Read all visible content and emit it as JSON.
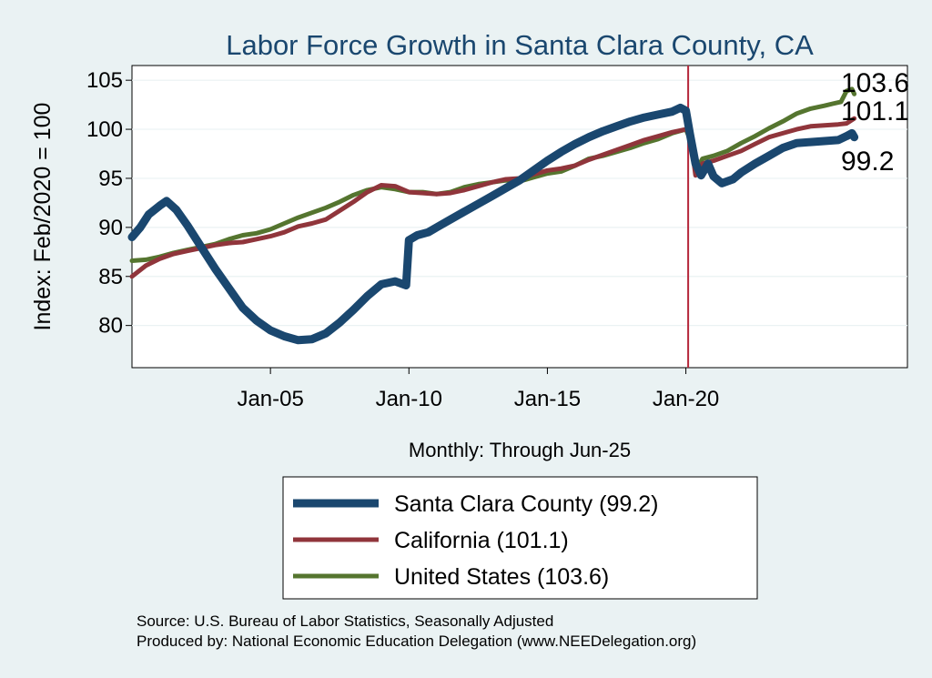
{
  "chart_data": {
    "type": "line",
    "title": "Labor Force Growth in Santa Clara  County, CA",
    "ylabel": "Index: Feb/2020 = 100",
    "xlabel": "Monthly: Through Jun-25",
    "xlim": [
      2000.0,
      2028.0
    ],
    "ylim": [
      75.7,
      106.5
    ],
    "yticks": [
      80,
      85,
      90,
      95,
      100,
      105
    ],
    "ytick_labels": [
      "80",
      "85",
      "90",
      "95",
      "100",
      "105"
    ],
    "xticks": [
      2005.0,
      2010.0,
      2015.0,
      2020.0
    ],
    "xtick_labels": [
      "Jan-05",
      "Jan-10",
      "Jan-15",
      "Jan-20"
    ],
    "vline_x": 2020.083,
    "series": [
      {
        "name": "Santa Clara  County",
        "legend": "Santa Clara  County (99.2)",
        "end_label": "99.2",
        "color": "#1a476f",
        "width": 9,
        "points": [
          [
            2000.0,
            89.0
          ],
          [
            2000.3,
            90.0
          ],
          [
            2000.6,
            91.3
          ],
          [
            2001.0,
            92.2
          ],
          [
            2001.25,
            92.7
          ],
          [
            2001.6,
            91.8
          ],
          [
            2002.0,
            90.2
          ],
          [
            2002.5,
            88.0
          ],
          [
            2003.0,
            85.8
          ],
          [
            2003.5,
            83.8
          ],
          [
            2004.0,
            81.8
          ],
          [
            2004.5,
            80.5
          ],
          [
            2005.0,
            79.5
          ],
          [
            2005.5,
            78.9
          ],
          [
            2006.0,
            78.5
          ],
          [
            2006.5,
            78.6
          ],
          [
            2007.0,
            79.2
          ],
          [
            2007.5,
            80.3
          ],
          [
            2008.0,
            81.6
          ],
          [
            2008.5,
            83.0
          ],
          [
            2009.0,
            84.2
          ],
          [
            2009.5,
            84.5
          ],
          [
            2009.9,
            84.1
          ],
          [
            2010.0,
            88.7
          ],
          [
            2010.3,
            89.2
          ],
          [
            2010.7,
            89.5
          ],
          [
            2011.0,
            90.0
          ],
          [
            2011.5,
            90.8
          ],
          [
            2012.0,
            91.6
          ],
          [
            2012.5,
            92.4
          ],
          [
            2013.0,
            93.2
          ],
          [
            2013.5,
            94.0
          ],
          [
            2014.0,
            94.8
          ],
          [
            2014.5,
            95.8
          ],
          [
            2015.0,
            96.8
          ],
          [
            2015.5,
            97.7
          ],
          [
            2016.0,
            98.5
          ],
          [
            2016.5,
            99.2
          ],
          [
            2017.0,
            99.8
          ],
          [
            2017.5,
            100.3
          ],
          [
            2018.0,
            100.8
          ],
          [
            2018.5,
            101.2
          ],
          [
            2019.0,
            101.5
          ],
          [
            2019.5,
            101.8
          ],
          [
            2019.8,
            102.2
          ],
          [
            2020.0,
            101.9
          ],
          [
            2020.15,
            99.5
          ],
          [
            2020.35,
            96.5
          ],
          [
            2020.55,
            95.3
          ],
          [
            2020.8,
            96.5
          ],
          [
            2021.0,
            95.2
          ],
          [
            2021.3,
            94.5
          ],
          [
            2021.7,
            94.9
          ],
          [
            2022.0,
            95.6
          ],
          [
            2022.5,
            96.5
          ],
          [
            2023.0,
            97.3
          ],
          [
            2023.5,
            98.1
          ],
          [
            2024.0,
            98.6
          ],
          [
            2024.5,
            98.7
          ],
          [
            2025.0,
            98.8
          ],
          [
            2025.5,
            98.9
          ],
          [
            2025.8,
            99.3
          ],
          [
            2026.0,
            99.6
          ],
          [
            2026.08,
            99.2
          ]
        ]
      },
      {
        "name": "California",
        "legend": "California (101.1)",
        "end_label": "101.1",
        "color": "#90353b",
        "width": 5,
        "points": [
          [
            2000.0,
            85.0
          ],
          [
            2000.5,
            86.1
          ],
          [
            2001.0,
            86.8
          ],
          [
            2001.5,
            87.3
          ],
          [
            2002.0,
            87.6
          ],
          [
            2002.5,
            87.9
          ],
          [
            2003.0,
            88.2
          ],
          [
            2003.5,
            88.4
          ],
          [
            2004.0,
            88.5
          ],
          [
            2004.5,
            88.8
          ],
          [
            2005.0,
            89.1
          ],
          [
            2005.5,
            89.5
          ],
          [
            2006.0,
            90.1
          ],
          [
            2006.5,
            90.4
          ],
          [
            2007.0,
            90.8
          ],
          [
            2007.5,
            91.7
          ],
          [
            2008.0,
            92.6
          ],
          [
            2008.5,
            93.6
          ],
          [
            2009.0,
            94.3
          ],
          [
            2009.5,
            94.2
          ],
          [
            2010.0,
            93.6
          ],
          [
            2010.5,
            93.5
          ],
          [
            2011.0,
            93.4
          ],
          [
            2011.5,
            93.5
          ],
          [
            2012.0,
            93.8
          ],
          [
            2012.5,
            94.2
          ],
          [
            2013.0,
            94.6
          ],
          [
            2013.5,
            94.9
          ],
          [
            2014.0,
            95.0
          ],
          [
            2014.5,
            95.4
          ],
          [
            2015.0,
            95.8
          ],
          [
            2015.5,
            96.0
          ],
          [
            2016.0,
            96.3
          ],
          [
            2016.5,
            96.9
          ],
          [
            2017.0,
            97.4
          ],
          [
            2017.5,
            97.9
          ],
          [
            2018.0,
            98.4
          ],
          [
            2018.5,
            98.9
          ],
          [
            2019.0,
            99.3
          ],
          [
            2019.5,
            99.7
          ],
          [
            2020.0,
            100.0
          ],
          [
            2020.15,
            99.5
          ],
          [
            2020.35,
            95.3
          ],
          [
            2020.6,
            96.5
          ],
          [
            2021.0,
            96.8
          ],
          [
            2021.5,
            97.3
          ],
          [
            2022.0,
            97.8
          ],
          [
            2022.5,
            98.5
          ],
          [
            2023.0,
            99.2
          ],
          [
            2023.5,
            99.6
          ],
          [
            2024.0,
            100.0
          ],
          [
            2024.5,
            100.3
          ],
          [
            2025.0,
            100.4
          ],
          [
            2025.5,
            100.5
          ],
          [
            2025.8,
            100.6
          ],
          [
            2026.08,
            101.1
          ]
        ]
      },
      {
        "name": "United States",
        "legend": "United States (103.6)",
        "end_label": "103.6",
        "color": "#55752f",
        "width": 5,
        "points": [
          [
            2000.0,
            86.6
          ],
          [
            2000.5,
            86.7
          ],
          [
            2001.0,
            87.0
          ],
          [
            2001.5,
            87.4
          ],
          [
            2002.0,
            87.7
          ],
          [
            2002.5,
            88.0
          ],
          [
            2003.0,
            88.3
          ],
          [
            2003.5,
            88.8
          ],
          [
            2004.0,
            89.2
          ],
          [
            2004.5,
            89.4
          ],
          [
            2005.0,
            89.8
          ],
          [
            2005.5,
            90.4
          ],
          [
            2006.0,
            91.0
          ],
          [
            2006.5,
            91.5
          ],
          [
            2007.0,
            92.0
          ],
          [
            2007.5,
            92.6
          ],
          [
            2008.0,
            93.3
          ],
          [
            2008.5,
            93.8
          ],
          [
            2009.0,
            94.1
          ],
          [
            2009.5,
            93.9
          ],
          [
            2010.0,
            93.6
          ],
          [
            2010.5,
            93.6
          ],
          [
            2011.0,
            93.4
          ],
          [
            2011.5,
            93.6
          ],
          [
            2012.0,
            94.1
          ],
          [
            2012.5,
            94.4
          ],
          [
            2013.0,
            94.6
          ],
          [
            2013.5,
            94.8
          ],
          [
            2014.0,
            94.7
          ],
          [
            2014.5,
            95.1
          ],
          [
            2015.0,
            95.5
          ],
          [
            2015.5,
            95.7
          ],
          [
            2016.0,
            96.3
          ],
          [
            2016.5,
            97.0
          ],
          [
            2017.0,
            97.3
          ],
          [
            2017.5,
            97.7
          ],
          [
            2018.0,
            98.1
          ],
          [
            2018.5,
            98.6
          ],
          [
            2019.0,
            99.0
          ],
          [
            2019.5,
            99.6
          ],
          [
            2020.0,
            100.0
          ],
          [
            2020.15,
            99.0
          ],
          [
            2020.35,
            95.7
          ],
          [
            2020.6,
            97.0
          ],
          [
            2021.0,
            97.3
          ],
          [
            2021.5,
            97.8
          ],
          [
            2022.0,
            98.6
          ],
          [
            2022.5,
            99.3
          ],
          [
            2023.0,
            100.1
          ],
          [
            2023.5,
            100.8
          ],
          [
            2024.0,
            101.6
          ],
          [
            2024.5,
            102.1
          ],
          [
            2025.0,
            102.4
          ],
          [
            2025.3,
            102.6
          ],
          [
            2025.6,
            102.8
          ],
          [
            2025.8,
            103.9
          ],
          [
            2026.0,
            104.1
          ],
          [
            2026.08,
            103.6
          ]
        ]
      }
    ]
  },
  "footer": {
    "source": "Source: U.S. Bureau of Labor Statistics, Seasonally Adjusted",
    "produced_by": "Produced by: National Economic Education Delegation (www.NEEDelegation.org)"
  },
  "colors": {
    "background": "#eaf2f3",
    "plot_background": "#ffffff",
    "title": "#1a476f",
    "vline": "#b5283b"
  }
}
